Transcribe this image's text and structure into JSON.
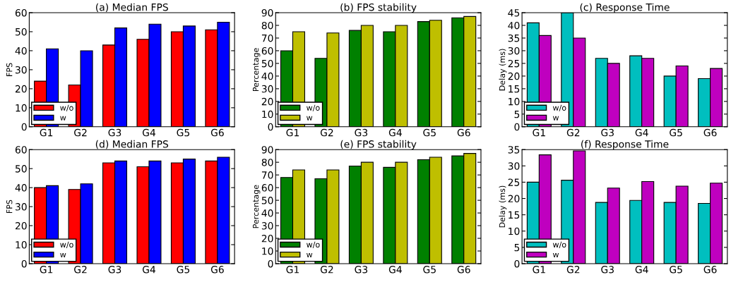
{
  "chart_data": [
    {
      "type": "bar",
      "title": "(a) Median FPS",
      "ylabel": "FPS",
      "categories": [
        "G1",
        "G2",
        "G3",
        "G4",
        "G5",
        "G6"
      ],
      "ylim": [
        0,
        60
      ],
      "yticks": [
        0,
        10,
        20,
        30,
        40,
        50,
        60
      ],
      "legend": "bottom left",
      "series": [
        {
          "name": "w/o",
          "color": "#ff0000",
          "values": [
            24,
            22,
            43,
            46,
            50,
            51
          ]
        },
        {
          "name": "w",
          "color": "#0000ff",
          "values": [
            41,
            40,
            52,
            54,
            53,
            55
          ]
        }
      ]
    },
    {
      "type": "bar",
      "title": "(b) FPS stability",
      "ylabel": "Percentage",
      "categories": [
        "G1",
        "G2",
        "G3",
        "G4",
        "G5",
        "G6"
      ],
      "ylim": [
        0,
        90
      ],
      "yticks": [
        0,
        10,
        20,
        30,
        40,
        50,
        60,
        70,
        80,
        90
      ],
      "legend": "bottom left",
      "series": [
        {
          "name": "w/o",
          "color": "#008000",
          "values": [
            60,
            54,
            76,
            75,
            83,
            86
          ]
        },
        {
          "name": "w",
          "color": "#bfbf00",
          "values": [
            75,
            74,
            80,
            80,
            84,
            87
          ]
        }
      ]
    },
    {
      "type": "bar",
      "title": "(c) Response Time",
      "ylabel": "Delay (ms)",
      "categories": [
        "G1",
        "G2",
        "G3",
        "G4",
        "G5",
        "G6"
      ],
      "ylim": [
        0,
        45
      ],
      "yticks": [
        0,
        5,
        10,
        15,
        20,
        25,
        30,
        35,
        40,
        45
      ],
      "legend": "bottom left",
      "series": [
        {
          "name": "w/o",
          "color": "#00bfbf",
          "values": [
            41,
            45,
            27,
            28,
            20,
            19
          ]
        },
        {
          "name": "w",
          "color": "#bf00bf",
          "values": [
            36,
            35,
            25,
            27,
            24,
            23
          ]
        }
      ]
    },
    {
      "type": "bar",
      "title": "(d) Median FPS",
      "ylabel": "FPS",
      "categories": [
        "G1",
        "G2",
        "G3",
        "G4",
        "G5",
        "G6"
      ],
      "ylim": [
        0,
        60
      ],
      "yticks": [
        0,
        10,
        20,
        30,
        40,
        50,
        60
      ],
      "legend": "bottom left",
      "series": [
        {
          "name": "w/o",
          "color": "#ff0000",
          "values": [
            40,
            39,
            53,
            51,
            53,
            54
          ]
        },
        {
          "name": "w",
          "color": "#0000ff",
          "values": [
            41,
            42,
            54,
            54,
            55,
            56
          ]
        }
      ]
    },
    {
      "type": "bar",
      "title": "(e) FPS stability",
      "ylabel": "Percentage",
      "categories": [
        "G1",
        "G2",
        "G3",
        "G4",
        "G5",
        "G6"
      ],
      "ylim": [
        0,
        90
      ],
      "yticks": [
        0,
        10,
        20,
        30,
        40,
        50,
        60,
        70,
        80,
        90
      ],
      "legend": "bottom left",
      "series": [
        {
          "name": "w/o",
          "color": "#008000",
          "values": [
            68,
            67,
            77,
            76,
            82,
            85
          ]
        },
        {
          "name": "w",
          "color": "#bfbf00",
          "values": [
            74,
            74,
            80,
            80,
            84,
            87
          ]
        }
      ]
    },
    {
      "type": "bar",
      "title": "(f) Response Time",
      "ylabel": "Delay (ms)",
      "categories": [
        "G1",
        "G2",
        "G3",
        "G4",
        "G5",
        "G6"
      ],
      "ylim": [
        0,
        35
      ],
      "yticks": [
        0,
        5,
        10,
        15,
        20,
        25,
        30,
        35
      ],
      "legend": "bottom left",
      "series": [
        {
          "name": "w/o",
          "color": "#00bfbf",
          "values": [
            25,
            25.6,
            18.8,
            19.4,
            18.8,
            18.5
          ]
        },
        {
          "name": "w",
          "color": "#bf00bf",
          "values": [
            33.4,
            34.6,
            23.2,
            25.2,
            23.8,
            24.7
          ]
        }
      ]
    }
  ]
}
